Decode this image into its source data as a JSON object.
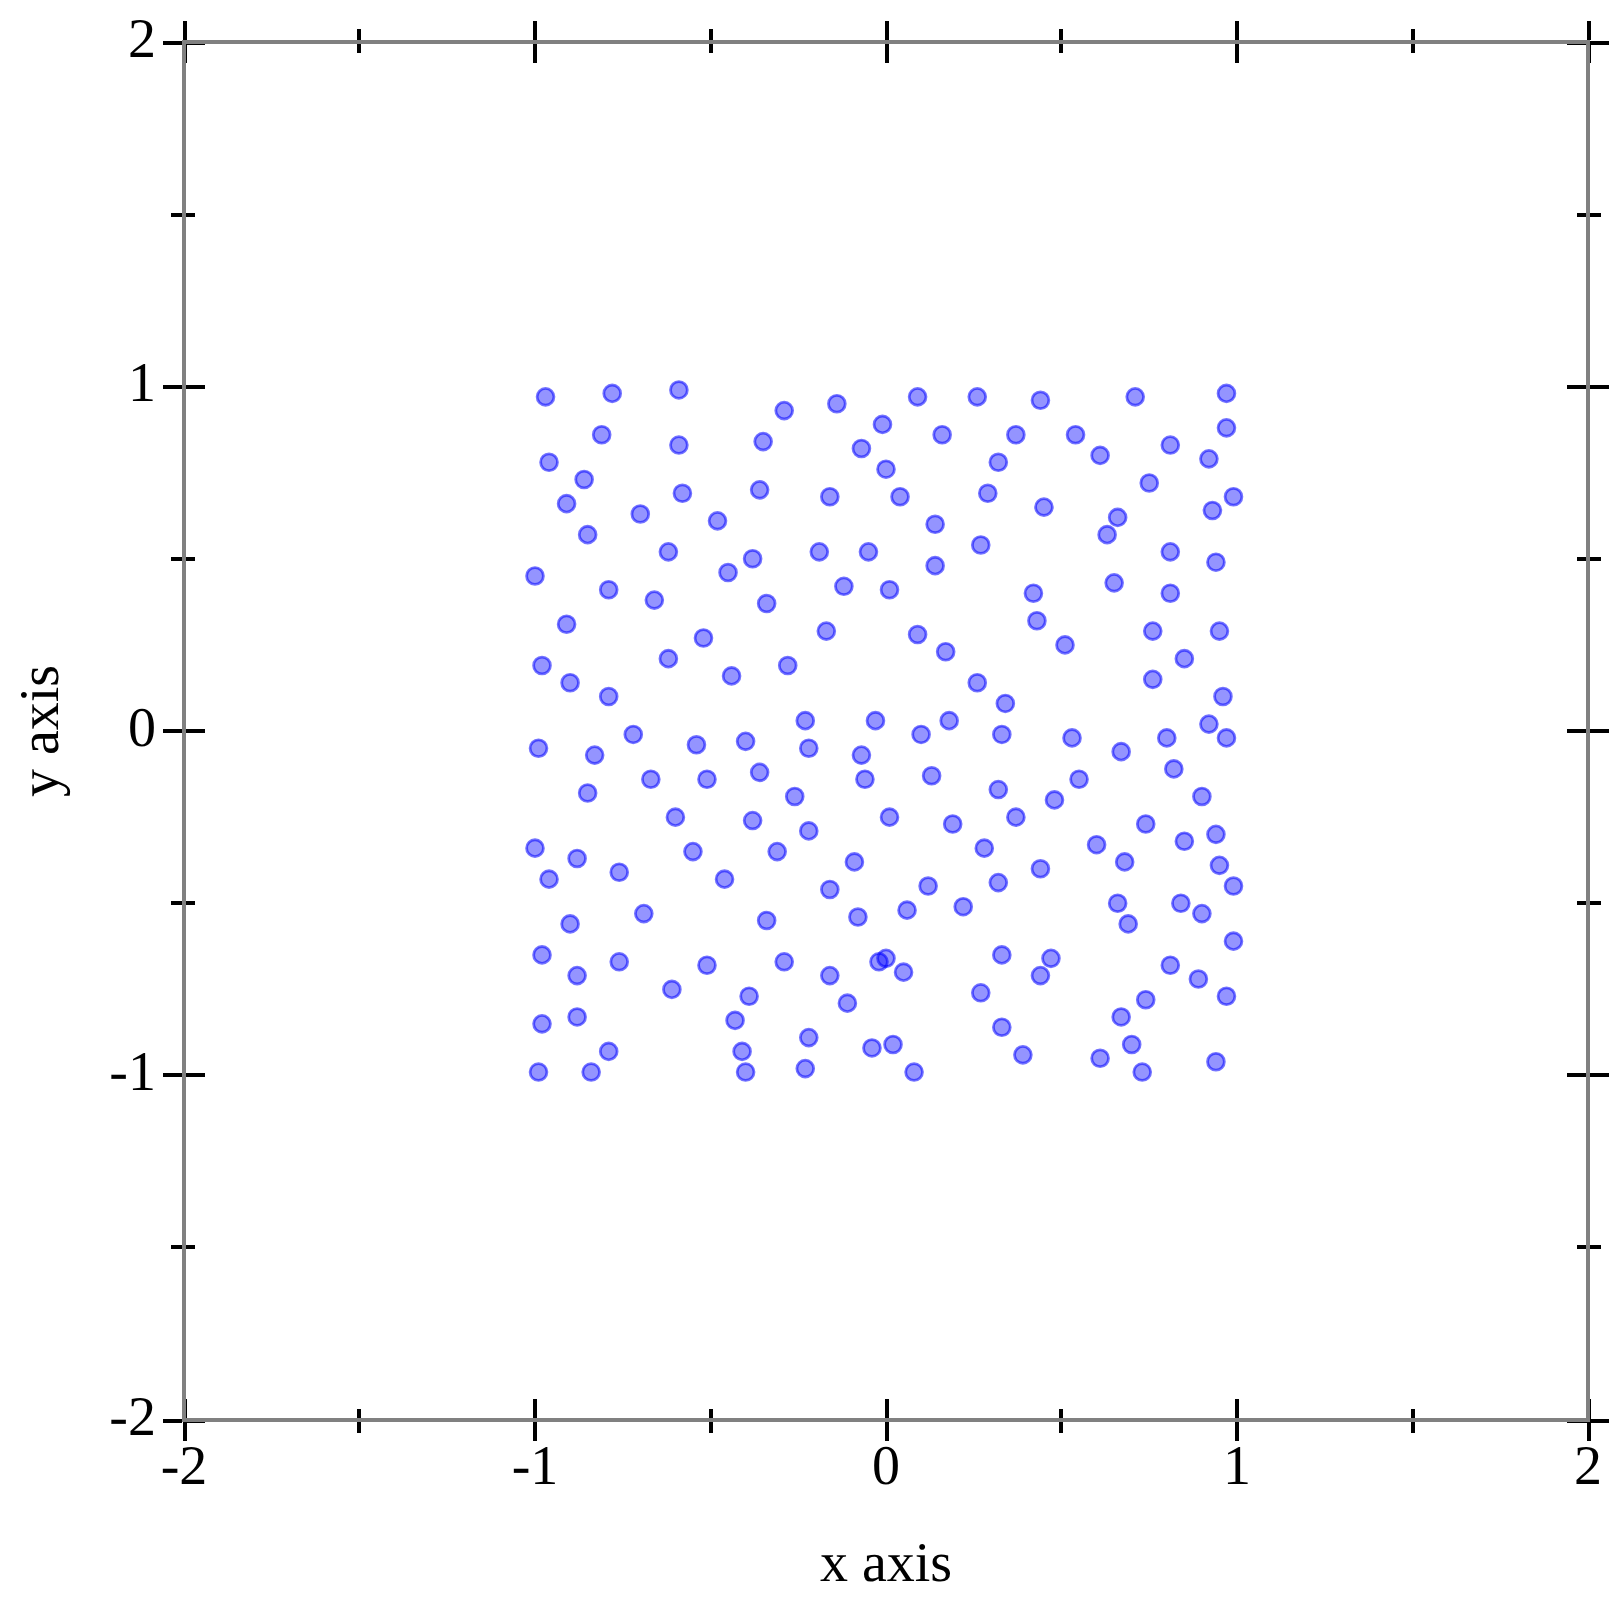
{
  "chart_data": {
    "type": "scatter",
    "xlabel": "x axis",
    "ylabel": "y axis",
    "xlim": [
      -2,
      2
    ],
    "ylim": [
      -2,
      2
    ],
    "xticks": [
      -2,
      {
        "value": -1.5,
        "label": null
      },
      -1,
      {
        "value": -0.5,
        "label": null
      },
      0,
      {
        "value": 0.5,
        "label": null
      },
      1,
      {
        "value": 1.5,
        "label": null
      },
      2
    ],
    "yticks": [
      -2,
      {
        "value": -1.5,
        "label": null
      },
      -1,
      {
        "value": -0.5,
        "label": null
      },
      0,
      {
        "value": 0.5,
        "label": null
      },
      1,
      {
        "value": 1.5,
        "label": null
      },
      2
    ],
    "marker": "circle",
    "color": "#0000ff",
    "x": [
      -0.97,
      -0.78,
      -0.59,
      -0.29,
      -0.14,
      -0.01,
      -0.96,
      -0.81,
      -0.59,
      -0.35,
      -0.07,
      -0.86,
      -0.58,
      -0.36,
      -0.16,
      -0.91,
      -0.7,
      -0.48,
      -0.05,
      -0.85,
      -0.62,
      -0.38,
      -0.19,
      -1.0,
      -0.79,
      -0.45,
      -0.12,
      -0.66,
      -0.34,
      -0.91,
      -0.52,
      -0.17,
      -0.98,
      -0.62,
      -0.28,
      -0.44,
      -0.79,
      -0.23,
      -0.03,
      -0.9,
      0.09,
      0.26,
      0.44,
      0.71,
      0.97,
      0.16,
      0.37,
      0.54,
      0.81,
      0.97,
      0.0,
      0.32,
      0.61,
      0.92,
      0.04,
      0.29,
      0.75,
      0.99,
      0.14,
      0.45,
      0.66,
      0.93,
      0.27,
      0.63,
      0.81,
      0.14,
      0.94,
      0.01,
      0.42,
      0.65,
      0.81,
      0.43,
      0.76,
      0.95,
      0.09,
      0.51,
      0.17,
      0.85,
      0.26,
      0.76,
      0.96,
      0.34,
      0.18,
      0.92,
      -0.99,
      -0.83,
      -0.72,
      -0.54,
      -0.4,
      -0.22,
      -0.07,
      -0.85,
      -0.67,
      -0.51,
      -0.36,
      -0.26,
      -0.06,
      -0.6,
      -0.38,
      -0.22,
      -1.0,
      -0.88,
      -0.55,
      -0.31,
      -0.09,
      -0.96,
      -0.76,
      -0.46,
      -0.16,
      -0.9,
      -0.69,
      -0.34,
      -0.08,
      -0.98,
      -0.76,
      -0.51,
      -0.29,
      -0.02,
      -0.88,
      -0.61,
      -0.39,
      -0.16,
      -0.11,
      -0.88,
      -0.43,
      -0.22,
      -0.98,
      -0.79,
      -0.41,
      -0.04,
      -0.99,
      -0.84,
      -0.4,
      -0.23,
      0.1,
      0.33,
      0.53,
      0.8,
      0.97,
      0.55,
      0.67,
      0.82,
      0.32,
      0.48,
      0.9,
      0.01,
      0.19,
      0.37,
      0.74,
      0.94,
      0.28,
      0.6,
      0.85,
      0.44,
      0.68,
      0.95,
      0.12,
      0.32,
      0.99,
      0.06,
      0.22,
      0.66,
      0.84,
      0.69,
      0.9,
      0.0,
      0.33,
      0.47,
      0.81,
      0.99,
      0.05,
      0.44,
      0.89,
      0.27,
      0.74,
      0.97,
      0.33,
      0.67,
      0.02,
      0.39,
      0.7,
      0.94,
      0.08,
      0.61,
      0.73,
      0.13
    ],
    "values": [
      0.97,
      0.98,
      0.99,
      0.93,
      0.95,
      0.89,
      0.78,
      0.86,
      0.83,
      0.84,
      0.82,
      0.73,
      0.69,
      0.7,
      0.68,
      0.66,
      0.63,
      0.61,
      0.52,
      0.57,
      0.52,
      0.5,
      0.52,
      0.45,
      0.41,
      0.46,
      0.42,
      0.38,
      0.37,
      0.31,
      0.27,
      0.29,
      0.19,
      0.21,
      0.19,
      0.16,
      0.1,
      0.03,
      0.03,
      0.14,
      0.97,
      0.97,
      0.96,
      0.97,
      0.98,
      0.86,
      0.86,
      0.86,
      0.83,
      0.88,
      0.76,
      0.78,
      0.8,
      0.79,
      0.68,
      0.69,
      0.72,
      0.68,
      0.6,
      0.65,
      0.62,
      0.64,
      0.54,
      0.57,
      0.52,
      0.48,
      0.49,
      0.41,
      0.4,
      0.43,
      0.4,
      0.32,
      0.29,
      0.29,
      0.28,
      0.25,
      0.23,
      0.21,
      0.14,
      0.15,
      0.1,
      0.08,
      0.03,
      0.02,
      -0.05,
      -0.07,
      -0.01,
      -0.04,
      -0.03,
      -0.05,
      -0.07,
      -0.18,
      -0.14,
      -0.14,
      -0.12,
      -0.19,
      -0.14,
      -0.25,
      -0.26,
      -0.29,
      -0.34,
      -0.37,
      -0.35,
      -0.35,
      -0.38,
      -0.43,
      -0.41,
      -0.43,
      -0.46,
      -0.56,
      -0.53,
      -0.55,
      -0.54,
      -0.65,
      -0.67,
      -0.68,
      -0.67,
      -0.67,
      -0.71,
      -0.75,
      -0.77,
      -0.71,
      -0.79,
      -0.83,
      -0.84,
      -0.89,
      -0.85,
      -0.93,
      -0.93,
      -0.92,
      -0.99,
      -0.99,
      -0.99,
      -0.98,
      -0.01,
      -0.01,
      -0.02,
      -0.02,
      -0.02,
      -0.14,
      -0.06,
      -0.11,
      -0.17,
      -0.2,
      -0.19,
      -0.25,
      -0.27,
      -0.25,
      -0.27,
      -0.3,
      -0.34,
      -0.33,
      -0.32,
      -0.4,
      -0.38,
      -0.39,
      -0.45,
      -0.44,
      -0.45,
      -0.52,
      -0.51,
      -0.5,
      -0.5,
      -0.56,
      -0.53,
      -0.66,
      -0.65,
      -0.66,
      -0.68,
      -0.61,
      -0.7,
      -0.71,
      -0.72,
      -0.76,
      -0.78,
      -0.77,
      -0.86,
      -0.83,
      -0.91,
      -0.94,
      -0.91,
      -0.96,
      -0.99,
      -0.95,
      -0.99,
      -0.13
    ]
  }
}
